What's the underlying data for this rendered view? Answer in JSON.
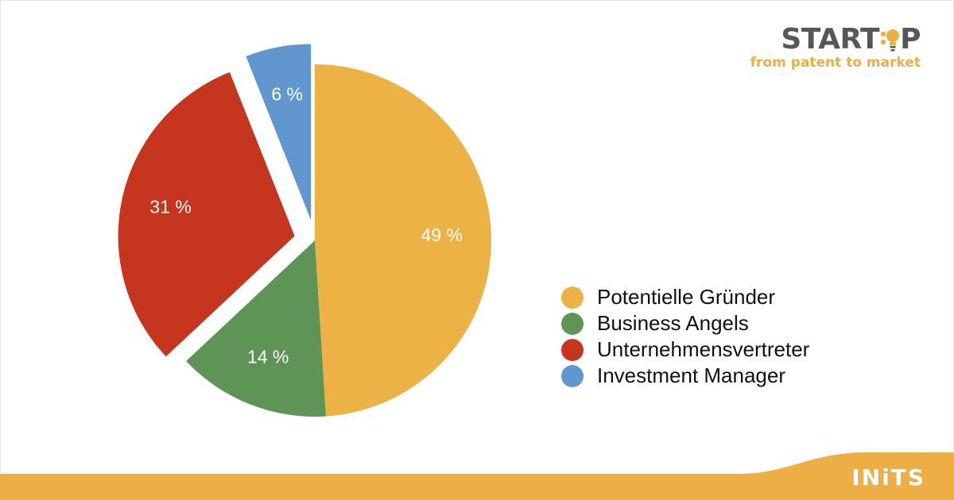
{
  "brand": {
    "title_before": "START",
    "title_after": "P",
    "tagline": "from patent to market",
    "bulb_icon": "lightbulb-icon"
  },
  "footer": {
    "logo_text": "INiTS",
    "band_color": "#ECAE45"
  },
  "chart_data": {
    "type": "pie",
    "title": "",
    "start_angle": "12 o'clock",
    "direction": "clockwise",
    "exploded": [
      "Unternehmensvertreter",
      "Investment Manager"
    ],
    "legend_position": "right",
    "slices": [
      {
        "name": "Potentielle Gründer",
        "value": 49,
        "label": "49 %",
        "color": "#ECB246"
      },
      {
        "name": "Business Angels",
        "value": 14,
        "label": "14 %",
        "color": "#5E9456"
      },
      {
        "name": "Unternehmensvertreter",
        "value": 31,
        "label": "31 %",
        "color": "#C6361F"
      },
      {
        "name": "Investment Manager",
        "value": 6,
        "label": "6 %",
        "color": "#6197CF"
      }
    ]
  }
}
